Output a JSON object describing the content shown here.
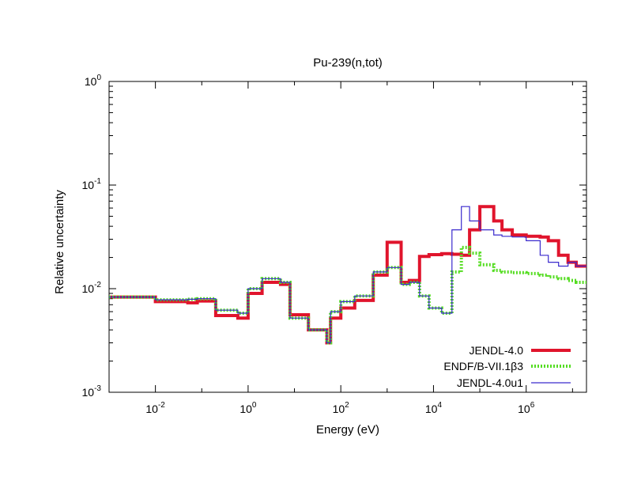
{
  "chart_data": {
    "type": "line",
    "title": "Pu-239(n,tot)",
    "xlabel": "Energy (eV)",
    "ylabel": "Relative uncertainty",
    "xscale": "log",
    "yscale": "log",
    "xlim": [
      0.001,
      20000000
    ],
    "ylim": [
      0.001,
      1
    ],
    "x_ticks": [
      {
        "value": 0.01,
        "base": "10",
        "exp": "-2"
      },
      {
        "value": 1,
        "base": "10",
        "exp": "0"
      },
      {
        "value": 100,
        "base": "10",
        "exp": "2"
      },
      {
        "value": 10000,
        "base": "10",
        "exp": "4"
      },
      {
        "value": 1000000,
        "base": "10",
        "exp": "6"
      }
    ],
    "y_ticks": [
      {
        "value": 0.001,
        "base": "10",
        "exp": "-3"
      },
      {
        "value": 0.01,
        "base": "10",
        "exp": "-2"
      },
      {
        "value": 0.1,
        "base": "10",
        "exp": "-1"
      },
      {
        "value": 1,
        "base": "10",
        "exp": "0"
      }
    ],
    "grid": false,
    "legend_position": "bottom-right",
    "series": [
      {
        "name": "JENDL-4.0",
        "color": "#e0142c",
        "style": "solid-thick",
        "x": [
          0.001,
          0.01,
          0.05,
          0.08,
          0.2,
          0.6,
          1,
          2,
          5,
          8,
          20,
          50,
          60,
          100,
          200,
          500,
          1000,
          2000,
          3000,
          5000,
          8000,
          15000,
          25000,
          40000,
          60000,
          100000,
          200000,
          300000,
          500000,
          1000000,
          2000000,
          3000000,
          5000000,
          8000000,
          12000000,
          20000000
        ],
        "y": [
          0.0083,
          0.0075,
          0.0073,
          0.0076,
          0.0055,
          0.0052,
          0.009,
          0.0115,
          0.011,
          0.0056,
          0.004,
          0.003,
          0.0052,
          0.0065,
          0.0077,
          0.0135,
          0.028,
          0.0115,
          0.012,
          0.0205,
          0.0213,
          0.0218,
          0.0215,
          0.021,
          0.037,
          0.062,
          0.045,
          0.037,
          0.033,
          0.032,
          0.0315,
          0.029,
          0.021,
          0.018,
          0.0165,
          0.018
        ]
      },
      {
        "name": "ENDF/B-VII.1β3",
        "color": "#55dd22",
        "style": "dotted",
        "x": [
          0.001,
          0.01,
          0.05,
          0.08,
          0.2,
          0.6,
          1,
          2,
          5,
          8,
          20,
          50,
          60,
          100,
          200,
          500,
          1000,
          2000,
          3000,
          5000,
          8000,
          15000,
          25000,
          40000,
          60000,
          100000,
          200000,
          300000,
          500000,
          1000000,
          2000000,
          3000000,
          5000000,
          8000000,
          12000000,
          20000000
        ],
        "y": [
          0.0083,
          0.0078,
          0.0079,
          0.008,
          0.0062,
          0.0058,
          0.01,
          0.0125,
          0.0115,
          0.0052,
          0.004,
          0.003,
          0.006,
          0.0075,
          0.0085,
          0.0145,
          0.016,
          0.011,
          0.0115,
          0.0085,
          0.0065,
          0.0058,
          0.0145,
          0.025,
          0.022,
          0.017,
          0.015,
          0.0145,
          0.0143,
          0.014,
          0.0135,
          0.013,
          0.0125,
          0.012,
          0.0115,
          0.015
        ]
      },
      {
        "name": "JENDL-4.0u1",
        "color": "#3a2acd",
        "style": "solid-thin",
        "x": [
          0.001,
          0.01,
          0.05,
          0.08,
          0.2,
          0.6,
          1,
          2,
          5,
          8,
          20,
          50,
          60,
          100,
          200,
          500,
          1000,
          2000,
          3000,
          5000,
          8000,
          15000,
          25000,
          40000,
          60000,
          100000,
          200000,
          300000,
          500000,
          1000000,
          2000000,
          3000000,
          5000000,
          8000000,
          12000000,
          20000000
        ],
        "y": [
          0.0083,
          0.0078,
          0.0079,
          0.008,
          0.0062,
          0.0058,
          0.01,
          0.0125,
          0.0115,
          0.0052,
          0.004,
          0.003,
          0.006,
          0.0075,
          0.0085,
          0.0145,
          0.016,
          0.011,
          0.0115,
          0.0085,
          0.0065,
          0.0058,
          0.037,
          0.062,
          0.045,
          0.037,
          0.033,
          0.032,
          0.0315,
          0.029,
          0.021,
          0.018,
          0.0165,
          0.018,
          0.0165,
          0.018
        ]
      }
    ]
  }
}
